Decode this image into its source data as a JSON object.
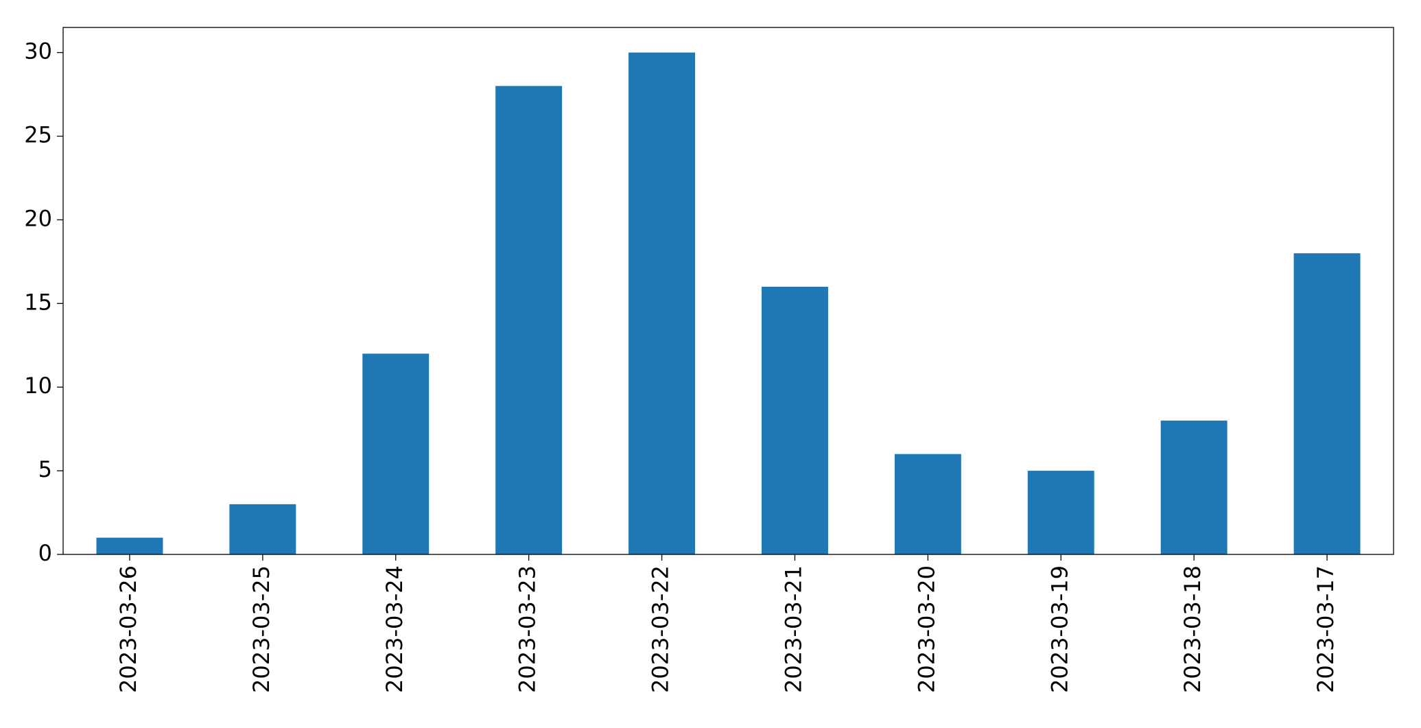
{
  "chart_data": {
    "type": "bar",
    "categories": [
      "2023-03-26",
      "2023-03-25",
      "2023-03-24",
      "2023-03-23",
      "2023-03-22",
      "2023-03-21",
      "2023-03-20",
      "2023-03-19",
      "2023-03-18",
      "2023-03-17"
    ],
    "values": [
      1,
      3,
      12,
      28,
      30,
      16,
      6,
      5,
      8,
      18
    ],
    "color": "#1f77b4",
    "ylim": [
      0,
      31.5
    ],
    "yticks": [
      0,
      5,
      10,
      15,
      20,
      25,
      30
    ],
    "grid": false
  }
}
